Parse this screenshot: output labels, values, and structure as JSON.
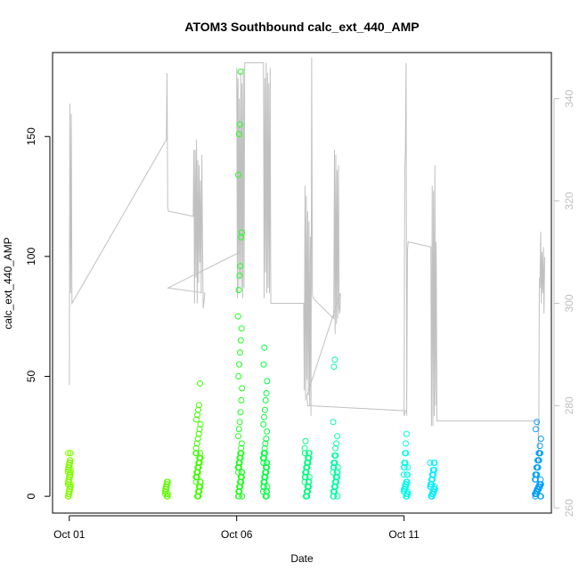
{
  "chart_data": {
    "type": "scatter",
    "title": "ATOM3 Southbound calc_ext_440_AMP",
    "xlabel": "Date",
    "ylabel": "calc_ext_440_AMP",
    "x_ticks": [
      {
        "value": 1,
        "label": "Oct 01"
      },
      {
        "value": 6,
        "label": "Oct 06"
      },
      {
        "value": 11,
        "label": "Oct 11"
      }
    ],
    "xlim": [
      0.5,
      15.4
    ],
    "ylim": [
      -7,
      185
    ],
    "y_ticks": [
      0,
      50,
      100,
      150
    ],
    "y2_ticks": [
      260,
      280,
      300,
      320,
      340
    ],
    "y2lim": [
      259,
      349
    ],
    "points_color_ramp": [
      "#7fff00",
      "#00ff00",
      "#00ff80",
      "#00ffff",
      "#0080ff"
    ],
    "clusters": [
      {
        "x": 1.0,
        "xw": 0.08,
        "color": "#80ff00",
        "values": [
          0,
          1,
          2,
          3,
          4,
          5,
          6,
          7,
          8,
          9,
          10,
          11,
          12,
          13,
          14,
          15,
          18
        ]
      },
      {
        "x": 3.9,
        "xw": 0.08,
        "color": "#60ff00",
        "values": [
          0,
          1,
          2,
          3,
          4,
          5,
          6
        ]
      },
      {
        "x": 4.85,
        "xw": 0.14,
        "color": "#40ff00",
        "values": [
          0,
          2,
          4,
          6,
          8,
          10,
          12,
          14,
          16,
          18,
          20,
          22,
          24,
          26,
          28,
          30,
          32,
          34,
          36,
          38,
          47
        ]
      },
      {
        "x": 6.1,
        "xw": 0.12,
        "color": "#20ff20",
        "values": [
          0,
          2,
          4,
          6,
          8,
          10,
          12,
          14,
          16,
          18,
          20,
          22,
          25,
          28,
          31,
          35,
          40,
          45,
          50,
          55,
          60,
          65,
          70,
          75,
          86,
          92,
          96,
          108,
          110,
          134,
          151,
          155,
          177
        ]
      },
      {
        "x": 6.85,
        "xw": 0.12,
        "color": "#00ff40",
        "values": [
          0,
          2,
          4,
          6,
          8,
          10,
          12,
          14,
          16,
          18,
          20,
          22,
          24,
          27,
          30,
          33,
          36,
          40,
          43,
          48,
          55,
          62
        ]
      },
      {
        "x": 8.1,
        "xw": 0.14,
        "color": "#00ff80",
        "values": [
          0,
          2,
          4,
          6,
          8,
          10,
          12,
          14,
          16,
          18,
          20,
          23
        ]
      },
      {
        "x": 8.95,
        "xw": 0.14,
        "color": "#00ffa0",
        "values": [
          0,
          2,
          4,
          6,
          8,
          10,
          12,
          14,
          17,
          20,
          22,
          25,
          31,
          54,
          57
        ]
      },
      {
        "x": 11.05,
        "xw": 0.12,
        "color": "#00ffe8",
        "values": [
          0,
          1,
          2,
          3,
          4,
          5,
          6,
          9,
          12,
          14,
          18,
          22,
          26
        ]
      },
      {
        "x": 11.85,
        "xw": 0.14,
        "color": "#00f0ff",
        "values": [
          0,
          1,
          2,
          3,
          4,
          5,
          7,
          9,
          11,
          14
        ]
      },
      {
        "x": 15.0,
        "xw": 0.18,
        "color": "#00a0ff",
        "values": [
          0,
          1,
          2,
          3,
          4,
          5,
          7,
          9,
          12,
          15,
          18,
          21,
          24,
          28,
          31
        ]
      }
    ],
    "secondary_line": {
      "color": "#c0c0c0",
      "points": [
        [
          1.0,
          284
        ],
        [
          1.02,
          339
        ],
        [
          1.04,
          302
        ],
        [
          1.06,
          337
        ],
        [
          1.08,
          300
        ],
        [
          3.9,
          332
        ],
        [
          3.92,
          345
        ],
        [
          3.94,
          319
        ],
        [
          3.96,
          318
        ],
        [
          4.7,
          317
        ],
        [
          4.72,
          330
        ],
        [
          4.74,
          300
        ],
        [
          4.76,
          330
        ],
        [
          4.78,
          305
        ],
        [
          4.8,
          332
        ],
        [
          4.82,
          300
        ],
        [
          4.84,
          328
        ],
        [
          4.86,
          304
        ],
        [
          4.88,
          327
        ],
        [
          4.9,
          308
        ],
        [
          4.92,
          324
        ],
        [
          4.94,
          302
        ],
        [
          4.96,
          329
        ],
        [
          4.98,
          311
        ],
        [
          5.0,
          299
        ],
        [
          5.05,
          302
        ],
        [
          3.95,
          303
        ],
        [
          6.1,
          310
        ],
        [
          6.0,
          346
        ],
        [
          6.02,
          301
        ],
        [
          6.04,
          344
        ],
        [
          6.06,
          302
        ],
        [
          6.08,
          340
        ],
        [
          6.1,
          305
        ],
        [
          6.12,
          345
        ],
        [
          6.14,
          303
        ],
        [
          6.16,
          343
        ],
        [
          6.18,
          301
        ],
        [
          6.2,
          346
        ],
        [
          6.22,
          303
        ],
        [
          6.24,
          347
        ],
        [
          6.8,
          347
        ],
        [
          6.82,
          301
        ],
        [
          6.84,
          344
        ],
        [
          6.86,
          306
        ],
        [
          6.88,
          347
        ],
        [
          6.9,
          302
        ],
        [
          6.92,
          345
        ],
        [
          6.94,
          303
        ],
        [
          6.96,
          343
        ],
        [
          6.98,
          302
        ],
        [
          7.0,
          346
        ],
        [
          7.02,
          300
        ],
        [
          8.0,
          300
        ],
        [
          8.02,
          283
        ],
        [
          8.04,
          323
        ],
        [
          8.06,
          281
        ],
        [
          8.08,
          321
        ],
        [
          8.1,
          285
        ],
        [
          8.12,
          318
        ],
        [
          8.14,
          282
        ],
        [
          8.16,
          316
        ],
        [
          8.18,
          280
        ],
        [
          8.2,
          313
        ],
        [
          8.22,
          278
        ],
        [
          8.24,
          348
        ],
        [
          8.26,
          302
        ],
        [
          8.28,
          301
        ],
        [
          8.9,
          297
        ],
        [
          8.92,
          330
        ],
        [
          8.94,
          294
        ],
        [
          8.96,
          329
        ],
        [
          8.98,
          296
        ],
        [
          9.0,
          326
        ],
        [
          9.02,
          297
        ],
        [
          9.04,
          327
        ],
        [
          9.06,
          299
        ],
        [
          9.08,
          298
        ],
        [
          9.1,
          302
        ],
        [
          8.1,
          282
        ],
        [
          8.12,
          280
        ],
        [
          11.05,
          279
        ],
        [
          11.0,
          278
        ],
        [
          11.02,
          326
        ],
        [
          11.04,
          330
        ],
        [
          11.06,
          347
        ],
        [
          11.08,
          278
        ],
        [
          11.1,
          310
        ],
        [
          11.12,
          312
        ],
        [
          11.8,
          311
        ],
        [
          11.82,
          276
        ],
        [
          11.84,
          323
        ],
        [
          11.86,
          276
        ],
        [
          11.88,
          322
        ],
        [
          11.9,
          278
        ],
        [
          11.92,
          327
        ],
        [
          11.94,
          280
        ],
        [
          11.96,
          312
        ],
        [
          11.98,
          277
        ],
        [
          15.0,
          277
        ],
        [
          15.02,
          269
        ],
        [
          15.04,
          305
        ],
        [
          15.06,
          303
        ],
        [
          15.08,
          314
        ],
        [
          15.1,
          300
        ],
        [
          15.12,
          310
        ],
        [
          15.14,
          302
        ],
        [
          15.16,
          311
        ],
        [
          15.18,
          298
        ],
        [
          15.2,
          309
        ]
      ]
    },
    "grid": false,
    "legend": "none"
  }
}
